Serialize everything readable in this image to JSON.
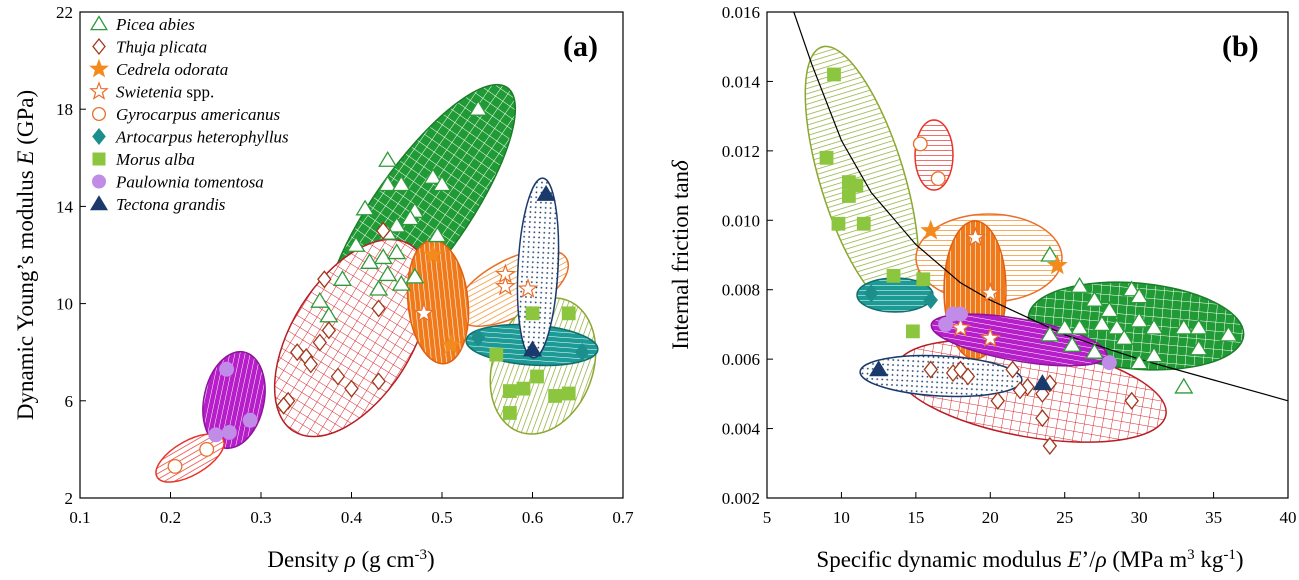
{
  "chart_data": [
    {
      "type": "scatter",
      "panel_label": "(a)",
      "xlabel": "Density ρ (g cm⁻³)",
      "ylabel": "Dynamic Young’s modulus E (GPa)",
      "xlim": [
        0.1,
        0.7
      ],
      "ylim": [
        2,
        22
      ],
      "xticks": [
        "0.1",
        "0.2",
        "0.3",
        "0.4",
        "0.5",
        "0.6",
        "0.7"
      ],
      "yticks": [
        "2",
        "6",
        "10",
        "14",
        "18",
        "22"
      ],
      "legend_position": "top-left",
      "series": [
        {
          "name": "Picea abies",
          "marker": "triangle-open",
          "color": "#2e9b3a",
          "points": [
            [
              0.54,
              18
            ],
            [
              0.44,
              15.9
            ],
            [
              0.49,
              15.2
            ],
            [
              0.5,
              14.9
            ],
            [
              0.44,
              14.9
            ],
            [
              0.455,
              14.9
            ],
            [
              0.47,
              13.8
            ],
            [
              0.415,
              13.9
            ],
            [
              0.465,
              13.5
            ],
            [
              0.45,
              13.2
            ],
            [
              0.44,
              12.9
            ],
            [
              0.495,
              12.8
            ],
            [
              0.405,
              12.4
            ],
            [
              0.435,
              11.9
            ],
            [
              0.45,
              12.1
            ],
            [
              0.42,
              11.7
            ],
            [
              0.44,
              11.2
            ],
            [
              0.47,
              11.1
            ],
            [
              0.455,
              10.8
            ],
            [
              0.39,
              11
            ],
            [
              0.43,
              10.6
            ],
            [
              0.365,
              10.1
            ],
            [
              0.375,
              9.5
            ]
          ]
        },
        {
          "name": "Thuja plicata",
          "marker": "diamond-open",
          "color": "#a0391c",
          "points": [
            [
              0.435,
              13
            ],
            [
              0.37,
              11
            ],
            [
              0.43,
              9.8
            ],
            [
              0.375,
              8.9
            ],
            [
              0.365,
              8.4
            ],
            [
              0.34,
              8
            ],
            [
              0.35,
              7.8
            ],
            [
              0.355,
              7.5
            ],
            [
              0.385,
              7
            ],
            [
              0.43,
              6.8
            ],
            [
              0.4,
              6.5
            ],
            [
              0.33,
              6
            ],
            [
              0.325,
              5.8
            ]
          ]
        },
        {
          "name": "Cedrela odorata",
          "marker": "star-filled",
          "color": "#f28a1e",
          "points": [
            [
              0.49,
              12
            ],
            [
              0.51,
              8.3
            ]
          ]
        },
        {
          "name": "Swietenia spp.",
          "marker": "star-open",
          "color": "#e8702a",
          "points": [
            [
              0.57,
              11.2
            ],
            [
              0.57,
              10.7
            ],
            [
              0.595,
              10.6
            ],
            [
              0.48,
              9.6
            ]
          ]
        },
        {
          "name": "Gyrocarpus americanus",
          "marker": "circle-open",
          "color": "#e8702a",
          "points": [
            [
              0.24,
              4
            ],
            [
              0.205,
              3.3
            ]
          ]
        },
        {
          "name": "Artocarpus heterophyllus",
          "marker": "diamond-filled",
          "color": "#1c8f8c",
          "points": [
            [
              0.54,
              8.6
            ],
            [
              0.655,
              8
            ]
          ]
        },
        {
          "name": "Morus alba",
          "marker": "square-filled",
          "color": "#8cc63f",
          "points": [
            [
              0.64,
              9.6
            ],
            [
              0.6,
              9.6
            ],
            [
              0.56,
              7.9
            ],
            [
              0.605,
              7
            ],
            [
              0.575,
              6.4
            ],
            [
              0.59,
              6.5
            ],
            [
              0.625,
              6.2
            ],
            [
              0.64,
              6.3
            ],
            [
              0.575,
              5.5
            ]
          ]
        },
        {
          "name": "Paulownia tomentosa",
          "marker": "circle-filled",
          "color": "#c08ce8",
          "points": [
            [
              0.262,
              7.3
            ],
            [
              0.288,
              5.2
            ],
            [
              0.265,
              4.7
            ],
            [
              0.25,
              4.6
            ]
          ]
        },
        {
          "name": "Tectona grandis",
          "marker": "triangle-filled",
          "color": "#1a3a6b",
          "points": [
            [
              0.615,
              14.5
            ],
            [
              0.6,
              8.1
            ]
          ]
        }
      ]
    },
    {
      "type": "scatter",
      "panel_label": "(b)",
      "xlabel": "Specific dynamic modulus E’/ρ (MPa m³ kg⁻¹)",
      "ylabel": "Internal friction tanδ",
      "xlim": [
        5,
        40
      ],
      "ylim": [
        0.002,
        0.016
      ],
      "xticks": [
        "5",
        "10",
        "15",
        "20",
        "25",
        "30",
        "35",
        "40"
      ],
      "yticks": [
        "0.002",
        "0.004",
        "0.006",
        "0.008",
        "0.010",
        "0.012",
        "0.014",
        "0.016"
      ],
      "series": [
        {
          "name": "Picea abies",
          "marker": "triangle-open",
          "color": "#2e9b3a",
          "points": [
            [
              24,
              0.009
            ],
            [
              26,
              0.0081
            ],
            [
              27,
              0.0077
            ],
            [
              29.5,
              0.008
            ],
            [
              30,
              0.0078
            ],
            [
              28,
              0.0074
            ],
            [
              27.5,
              0.007
            ],
            [
              26,
              0.0069
            ],
            [
              25,
              0.0069
            ],
            [
              30,
              0.0071
            ],
            [
              31,
              0.0069
            ],
            [
              33,
              0.0069
            ],
            [
              34,
              0.0069
            ],
            [
              36,
              0.0067
            ],
            [
              28.5,
              0.0069
            ],
            [
              29,
              0.0066
            ],
            [
              31,
              0.0061
            ],
            [
              30,
              0.0059
            ],
            [
              34,
              0.0063
            ],
            [
              24,
              0.0067
            ],
            [
              33,
              0.0052
            ],
            [
              27,
              0.0062
            ],
            [
              25.5,
              0.0064
            ]
          ]
        },
        {
          "name": "Thuja plicata",
          "marker": "diamond-open",
          "color": "#a0391c",
          "points": [
            [
              16,
              0.0057
            ],
            [
              17.5,
              0.0056
            ],
            [
              18.5,
              0.0055
            ],
            [
              21.5,
              0.0057
            ],
            [
              22.5,
              0.0052
            ],
            [
              23.5,
              0.005
            ],
            [
              24,
              0.0053
            ],
            [
              20.5,
              0.0048
            ],
            [
              23.5,
              0.0043
            ],
            [
              24,
              0.0035
            ],
            [
              29.5,
              0.0048
            ],
            [
              18,
              0.0057
            ],
            [
              22,
              0.0051
            ]
          ]
        },
        {
          "name": "Cedrela odorata",
          "marker": "star-filled",
          "color": "#f28a1e",
          "points": [
            [
              16,
              0.0097
            ],
            [
              24.5,
              0.0087
            ]
          ]
        },
        {
          "name": "Swietenia spp.",
          "marker": "star-open",
          "color": "#e8702a",
          "points": [
            [
              19,
              0.0095
            ],
            [
              20,
              0.0079
            ],
            [
              18,
              0.0069
            ],
            [
              20,
              0.0066
            ]
          ]
        },
        {
          "name": "Gyrocarpus americanus",
          "marker": "circle-open",
          "color": "#e8702a",
          "points": [
            [
              15.3,
              0.0122
            ],
            [
              16.5,
              0.0112
            ]
          ]
        },
        {
          "name": "Artocarpus heterophyllus",
          "marker": "diamond-filled",
          "color": "#1c8f8c",
          "points": [
            [
              12,
              0.0079
            ],
            [
              16,
              0.0077
            ]
          ]
        },
        {
          "name": "Morus alba",
          "marker": "square-filled",
          "color": "#8cc63f",
          "points": [
            [
              9.5,
              0.0142
            ],
            [
              9,
              0.0118
            ],
            [
              10.5,
              0.0111
            ],
            [
              11,
              0.011
            ],
            [
              10.5,
              0.0107
            ],
            [
              9.8,
              0.0099
            ],
            [
              11.5,
              0.0099
            ],
            [
              13.5,
              0.0084
            ],
            [
              15.5,
              0.0083
            ],
            [
              14.8,
              0.0068
            ]
          ]
        },
        {
          "name": "Paulownia tomentosa",
          "marker": "circle-filled",
          "color": "#c08ce8",
          "points": [
            [
              17.5,
              0.0073
            ],
            [
              18,
              0.0073
            ],
            [
              17,
              0.007
            ],
            [
              28,
              0.0059
            ]
          ]
        },
        {
          "name": "Tectona grandis",
          "marker": "triangle-filled",
          "color": "#1a3a6b",
          "points": [
            [
              12.5,
              0.0057
            ],
            [
              23.5,
              0.0053
            ]
          ]
        }
      ],
      "fit_curve": {
        "x": [
          6.8,
          8,
          10,
          12,
          15,
          18,
          20,
          25,
          30,
          35,
          40
        ],
        "y": [
          0.016,
          0.0145,
          0.0123,
          0.0108,
          0.0093,
          0.0082,
          0.0077,
          0.0067,
          0.006,
          0.0054,
          0.0048
        ]
      }
    }
  ]
}
